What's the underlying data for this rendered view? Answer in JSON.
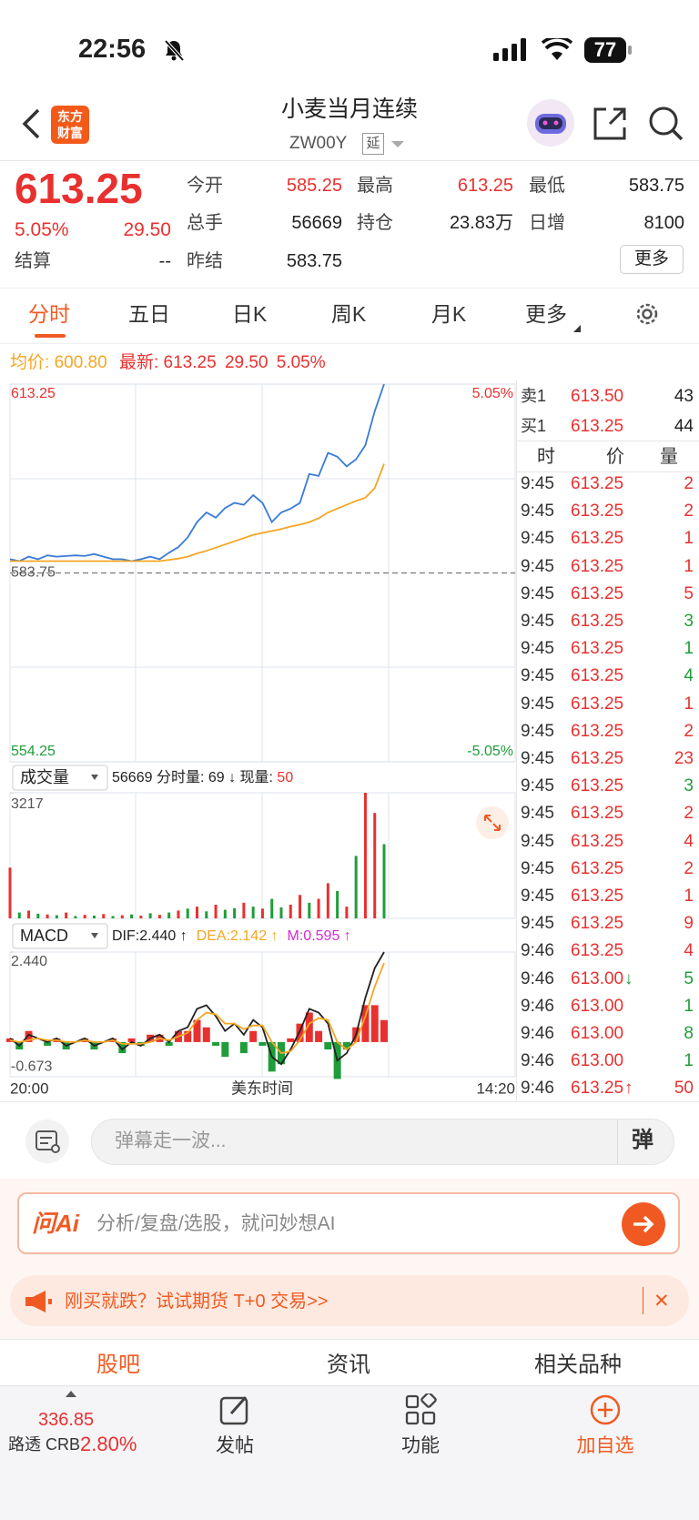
{
  "status_bar": {
    "time": "22:56",
    "battery": "77"
  },
  "header": {
    "logo": [
      "东方",
      "财富"
    ],
    "title": "小麦当月连续",
    "code": "ZW00Y",
    "delay_tag": "延"
  },
  "quote": {
    "price": "613.25",
    "change_pct": "5.05%",
    "change": "29.50",
    "fields": [
      {
        "label": "今开",
        "value": "585.25"
      },
      {
        "label": "最高",
        "value": "613.25"
      },
      {
        "label": "最低",
        "value": "583.75"
      },
      {
        "label": "总手",
        "value": "56669"
      },
      {
        "label": "持仓",
        "value": "23.83万"
      },
      {
        "label": "日增",
        "value": "8100"
      },
      {
        "label": "结算",
        "value": "--"
      },
      {
        "label": "昨结",
        "value": "583.75"
      }
    ],
    "more_button": "更多"
  },
  "tabs": [
    "分时",
    "五日",
    "日K",
    "周K",
    "月K",
    "更多"
  ],
  "info_line": {
    "avg_label": "均价:",
    "avg": "600.80",
    "last_label": "最新:",
    "last": "613.25",
    "change": "29.50",
    "change_pct": "5.05%"
  },
  "chart_data": [
    {
      "type": "line",
      "ylim": [
        554.25,
        613.25
      ],
      "yticks": [
        554.25,
        583.75,
        613.25
      ],
      "y2lim": [
        -5.05,
        5.05
      ],
      "y2ticks": [
        {
          "value": -5.05,
          "label": "-5.05%"
        },
        {
          "value": 5.05,
          "label": "5.05%"
        }
      ],
      "series": [
        {
          "color": "#3a7bd5",
          "values": [
            585.9,
            585.6,
            586.3,
            585.9,
            586.5,
            586.3,
            586.4,
            586.5,
            586.4,
            586.7,
            586.3,
            585.9,
            585.9,
            585.6,
            585.9,
            586.3,
            585.9,
            586.9,
            587.8,
            589.3,
            591.7,
            593.2,
            592.4,
            593.9,
            594.7,
            594.4,
            595.9,
            594.7,
            591.7,
            593.2,
            593.8,
            594.7,
            599.2,
            598.9,
            602.5,
            601.9,
            600.4,
            601.5,
            603.7,
            609.0,
            613.25
          ]
        },
        {
          "color": "#f5a623",
          "values": [
            585.6,
            585.6,
            585.6,
            585.6,
            585.6,
            585.6,
            585.6,
            585.6,
            585.6,
            585.6,
            585.6,
            585.6,
            585.6,
            585.6,
            585.6,
            585.6,
            585.6,
            585.8,
            586.0,
            586.3,
            586.8,
            587.2,
            587.7,
            588.2,
            588.7,
            589.2,
            589.7,
            590.0,
            590.3,
            590.6,
            591.0,
            591.3,
            591.7,
            592.3,
            593.2,
            593.8,
            594.4,
            595.0,
            595.5,
            597.0,
            600.8
          ]
        }
      ]
    },
    {
      "type": "bar",
      "title": "成交量",
      "summary": "56669 分时量: 69 ↓ 现量: ",
      "current": "50",
      "ylim": [
        0,
        3217
      ],
      "yticks": [
        3217
      ],
      "series": [
        {
          "color": "#e8312f",
          "values": [
            1300,
            null,
            200,
            null,
            100,
            null,
            150,
            null,
            90,
            null,
            110,
            null,
            80,
            null,
            70,
            null,
            90,
            null,
            200,
            null,
            300,
            null,
            350,
            null,
            null,
            400,
            null,
            250,
            null,
            null,
            350,
            600,
            null,
            500,
            900,
            null,
            300,
            null,
            3217,
            2700,
            null
          ]
        },
        {
          "color": "#1f9d3a",
          "values": [
            null,
            150,
            null,
            120,
            null,
            80,
            null,
            60,
            null,
            70,
            null,
            60,
            null,
            100,
            null,
            130,
            null,
            150,
            null,
            250,
            null,
            180,
            null,
            220,
            260,
            null,
            300,
            null,
            500,
            280,
            null,
            null,
            400,
            null,
            null,
            700,
            null,
            1600,
            null,
            null,
            1900
          ]
        }
      ]
    },
    {
      "type": "macd",
      "title": "MACD",
      "legend": [
        "DIF:2.440 ↑",
        "DEA:2.142 ↑",
        "M:0.595 ↑"
      ],
      "legend_colors": [
        "#222222",
        "#f5a623",
        "#d62ad6"
      ],
      "ylim": [
        -0.94,
        2.44
      ],
      "yticks": [
        -0.673,
        {
          "value": 2.44,
          "label": "2.440"
        }
      ],
      "series": [
        {
          "color": "#222222",
          "values": [
            0.1,
            -0.1,
            0.2,
            0.1,
            0.0,
            0.1,
            -0.1,
            0.0,
            0.1,
            -0.1,
            0.0,
            0.1,
            -0.2,
            0.0,
            -0.1,
            0.1,
            0.2,
            0.0,
            0.3,
            0.4,
            0.9,
            1.0,
            0.7,
            0.3,
            0.5,
            0.2,
            0.6,
            0.4,
            -0.4,
            -0.6,
            -0.2,
            0.3,
            0.9,
            0.8,
            0.5,
            -0.5,
            -0.3,
            0.2,
            1.2,
            2.0,
            2.44
          ]
        },
        {
          "color": "#f5a623",
          "values": [
            0.05,
            0.0,
            0.05,
            0.1,
            0.05,
            0.05,
            0.0,
            0.0,
            0.05,
            0.0,
            0.0,
            0.05,
            -0.05,
            -0.05,
            -0.05,
            0.0,
            0.1,
            0.05,
            0.15,
            0.25,
            0.6,
            0.8,
            0.75,
            0.5,
            0.5,
            0.35,
            0.45,
            0.45,
            0.0,
            -0.3,
            -0.25,
            0.05,
            0.5,
            0.65,
            0.6,
            0.0,
            -0.2,
            0.0,
            0.7,
            1.5,
            2.142
          ]
        }
      ],
      "histogram": {
        "up_color": "#e8312f",
        "down_color": "#1f9d3a",
        "values": [
          0.1,
          -0.2,
          0.3,
          0.0,
          -0.1,
          0.1,
          -0.2,
          0.0,
          0.1,
          -0.2,
          0.0,
          0.1,
          -0.3,
          0.1,
          -0.1,
          0.2,
          0.2,
          -0.1,
          0.3,
          0.3,
          0.6,
          0.4,
          -0.1,
          -0.4,
          0.0,
          -0.3,
          0.3,
          -0.1,
          -0.8,
          -0.6,
          0.1,
          0.5,
          0.8,
          0.3,
          -0.2,
          -1.0,
          -0.2,
          0.4,
          1.0,
          1.0,
          0.595
        ]
      }
    }
  ],
  "x_axis": {
    "start": "20:00",
    "label": "美东时间",
    "end": "14:20"
  },
  "order_book": [
    {
      "side": "卖1",
      "price": "613.50",
      "volume": "43"
    },
    {
      "side": "买1",
      "price": "613.25",
      "volume": "44"
    }
  ],
  "trade_header": [
    "时",
    "价",
    "量"
  ],
  "trades": [
    {
      "time": "9:45",
      "price": "613.25",
      "volume": "2",
      "dir": "up"
    },
    {
      "time": "9:45",
      "price": "613.25",
      "volume": "2",
      "dir": "up"
    },
    {
      "time": "9:45",
      "price": "613.25",
      "volume": "1",
      "dir": "up"
    },
    {
      "time": "9:45",
      "price": "613.25",
      "volume": "1",
      "dir": "up"
    },
    {
      "time": "9:45",
      "price": "613.25",
      "volume": "5",
      "dir": "up"
    },
    {
      "time": "9:45",
      "price": "613.25",
      "volume": "3",
      "dir": "down"
    },
    {
      "time": "9:45",
      "price": "613.25",
      "volume": "1",
      "dir": "down"
    },
    {
      "time": "9:45",
      "price": "613.25",
      "volume": "4",
      "dir": "down"
    },
    {
      "time": "9:45",
      "price": "613.25",
      "volume": "1",
      "dir": "up"
    },
    {
      "time": "9:45",
      "price": "613.25",
      "volume": "2",
      "dir": "up"
    },
    {
      "time": "9:45",
      "price": "613.25",
      "volume": "23",
      "dir": "up"
    },
    {
      "time": "9:45",
      "price": "613.25",
      "volume": "3",
      "dir": "down"
    },
    {
      "time": "9:45",
      "price": "613.25",
      "volume": "2",
      "dir": "up"
    },
    {
      "time": "9:45",
      "price": "613.25",
      "volume": "4",
      "dir": "up"
    },
    {
      "time": "9:45",
      "price": "613.25",
      "volume": "2",
      "dir": "up"
    },
    {
      "time": "9:45",
      "price": "613.25",
      "volume": "1",
      "dir": "up"
    },
    {
      "time": "9:45",
      "price": "613.25",
      "volume": "9",
      "dir": "up"
    },
    {
      "time": "9:46",
      "price": "613.25",
      "volume": "4",
      "dir": "up"
    },
    {
      "time": "9:46",
      "price": "613.00",
      "arrow": "↓",
      "volume": "5",
      "dir": "down"
    },
    {
      "time": "9:46",
      "price": "613.00",
      "volume": "1",
      "dir": "down"
    },
    {
      "time": "9:46",
      "price": "613.00",
      "volume": "8",
      "dir": "down"
    },
    {
      "time": "9:46",
      "price": "613.00",
      "volume": "1",
      "dir": "down"
    },
    {
      "time": "9:46",
      "price": "613.25",
      "arrow": "↑",
      "volume": "50",
      "dir": "up"
    }
  ],
  "comment_bar": {
    "placeholder": "弹幕走一波...",
    "danmu": "弹"
  },
  "ai_bar": {
    "brand": "问Ai",
    "placeholder": "分析/复盘/选股，就问妙想AI"
  },
  "banner": {
    "text": "刚买就跌？试试期货 T+0 交易>>",
    "close": "✕"
  },
  "section_tabs": [
    "股吧",
    "资讯",
    "相关品种"
  ],
  "bottom_nav": {
    "index_value": "336.85",
    "index_name": "路透 CRB",
    "index_change": "2.80%",
    "items": [
      "发帖",
      "功能",
      "加自选"
    ]
  }
}
